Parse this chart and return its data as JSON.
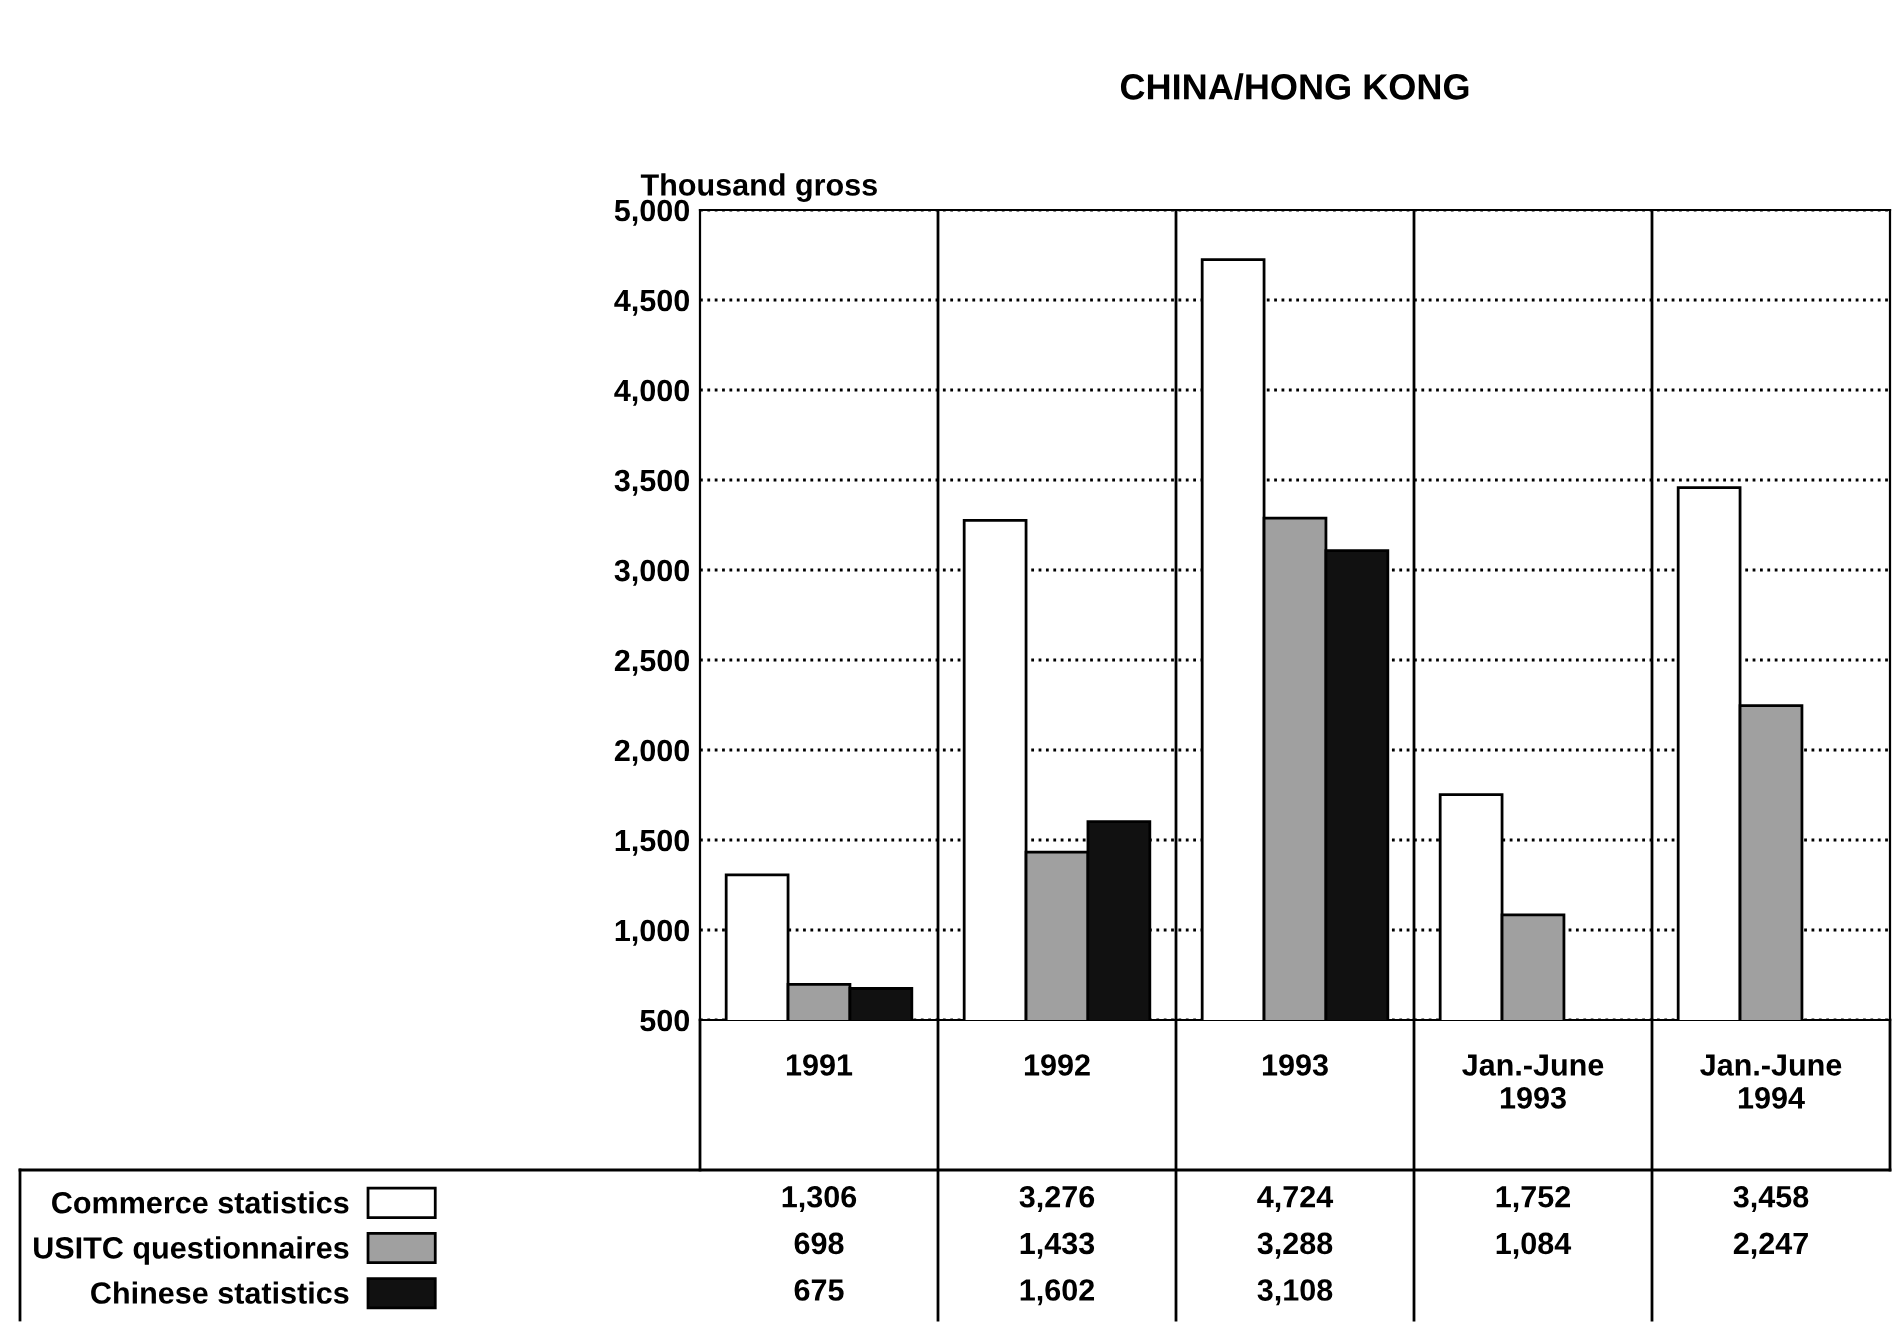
{
  "chart_data": {
    "type": "bar",
    "title": "CHINA/HONG KONG",
    "ylabel": "Thousand gross",
    "categories": [
      "1991",
      "1992",
      "1993",
      "Jan.-June\n1993",
      "Jan.-June\n1994"
    ],
    "series": [
      {
        "name": "Commerce statistics",
        "color": "#ffffff",
        "values": [
          1306,
          3276,
          4724,
          1752,
          3458
        ],
        "value_labels": [
          "1,306",
          "3,276",
          "4,724",
          "1,752",
          "3,458"
        ]
      },
      {
        "name": "USITC questionnaires",
        "color": "#a0a0a0",
        "values": [
          698,
          1433,
          3288,
          1084,
          2247
        ],
        "value_labels": [
          "698",
          "1,433",
          "3,288",
          "1,084",
          "2,247"
        ]
      },
      {
        "name": "Chinese statistics",
        "color": "#111111",
        "values": [
          675,
          1602,
          3108,
          null,
          null
        ],
        "value_labels": [
          "675",
          "1,602",
          "3,108",
          null,
          null
        ]
      }
    ],
    "ylim": [
      500,
      5000
    ],
    "yticks": [
      {
        "value": 500,
        "label": "500"
      },
      {
        "value": 1000,
        "label": "1,000"
      },
      {
        "value": 1500,
        "label": "1,500"
      },
      {
        "value": 2000,
        "label": "2,000"
      },
      {
        "value": 2500,
        "label": "2,500"
      },
      {
        "value": 3000,
        "label": "3,000"
      },
      {
        "value": 3500,
        "label": "3,500"
      },
      {
        "value": 4000,
        "label": "4,000"
      },
      {
        "value": 4500,
        "label": "4,500"
      },
      {
        "value": 5000,
        "label": "5,000"
      }
    ],
    "grid": "y",
    "line_style": "dotted",
    "legend": "bottom left"
  }
}
